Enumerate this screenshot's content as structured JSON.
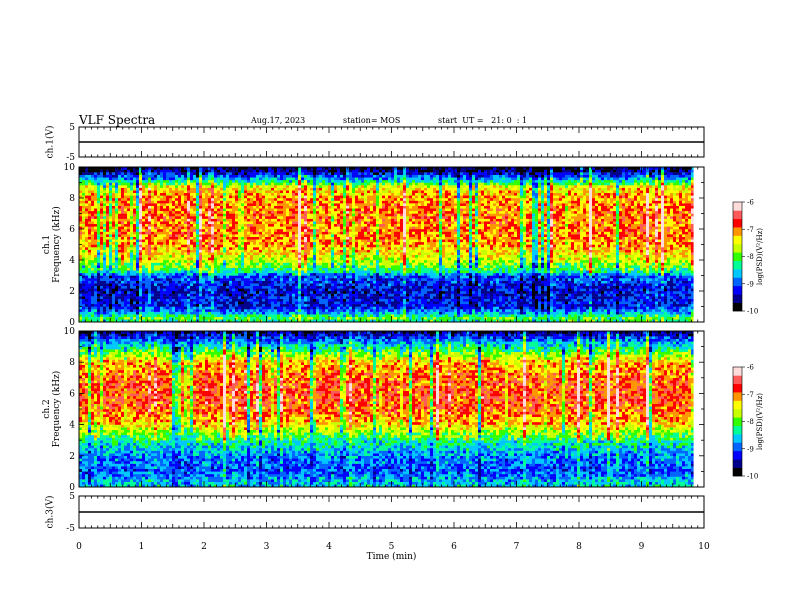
{
  "header": {
    "title": "VLF Spectra",
    "date": "Aug.17, 2023",
    "station": "station= MOS",
    "start": "start  UT =   21: 0  : 1"
  },
  "colors": {
    "scale": [
      "#000000",
      "#00008c",
      "#0000ff",
      "#0064ff",
      "#00c8ff",
      "#00ff96",
      "#32ff00",
      "#c8ff00",
      "#ffff00",
      "#ff9600",
      "#ff0000",
      "#ff5a5a",
      "#ffdcdc"
    ],
    "trace": "#000000"
  },
  "chart_data": [
    {
      "id": "ch1-voltage",
      "type": "line",
      "ylabel": "ch.1(V)",
      "ylim": [
        -5,
        5
      ],
      "yticks": [
        -5,
        5
      ],
      "x": [
        0,
        10
      ],
      "y": [
        0,
        0
      ],
      "xlim": [
        0,
        10
      ]
    },
    {
      "id": "ch1-spectrogram",
      "type": "heatmap",
      "ylabel": "ch.1\nFrequency (kHz)",
      "ylim": [
        0,
        10
      ],
      "yticks": [
        0,
        2,
        4,
        6,
        8,
        10
      ],
      "xlim": [
        0,
        10
      ],
      "x_data_end": 9.83,
      "colorbar": {
        "label": "log(PSD)(V²/Hz)",
        "range": [
          -10,
          -6
        ],
        "ticks": [
          -10,
          -9,
          -8,
          -7,
          -6
        ]
      },
      "profile_freq_khz": [
        0,
        0.3,
        0.6,
        1,
        2,
        3,
        3.2,
        4,
        5,
        6,
        7,
        8,
        8.7,
        9,
        9.3,
        9.7,
        10
      ],
      "profile_log_psd": [
        -8.3,
        -8.0,
        -8.7,
        -9.2,
        -9.3,
        -9.0,
        -8.4,
        -7.6,
        -7.1,
        -7.0,
        -7.0,
        -7.1,
        -7.4,
        -8.2,
        -8.8,
        -9.5,
        -9.8
      ]
    },
    {
      "id": "ch2-spectrogram",
      "type": "heatmap",
      "ylabel": "ch.2\nFrequency (kHz)",
      "ylim": [
        0,
        10
      ],
      "yticks": [
        0,
        2,
        4,
        6,
        8,
        10
      ],
      "xlim": [
        0,
        10
      ],
      "x_data_end": 9.83,
      "colorbar": {
        "label": "log(PSD)(V²/Hz)",
        "range": [
          -10,
          -6
        ],
        "ticks": [
          -10,
          -9,
          -8,
          -7,
          -6
        ]
      },
      "profile_freq_khz": [
        0,
        0.5,
        1,
        2,
        3,
        4,
        5,
        6,
        7,
        8,
        8.5,
        9,
        9.5,
        10
      ],
      "profile_log_psd": [
        -8.5,
        -8.7,
        -9.0,
        -8.8,
        -8.3,
        -7.3,
        -6.9,
        -6.8,
        -6.9,
        -7.2,
        -7.8,
        -8.4,
        -9.0,
        -9.6
      ]
    },
    {
      "id": "ch3-voltage",
      "type": "line",
      "ylabel": "ch.3(V)",
      "ylim": [
        -5,
        5
      ],
      "yticks": [
        -5,
        5
      ],
      "x": [
        0,
        10
      ],
      "y": [
        0,
        0
      ],
      "xlim": [
        0,
        10
      ]
    }
  ],
  "x_axis": {
    "label": "Time (min)",
    "ticks": [
      "0",
      "1",
      "2",
      "3",
      "4",
      "5",
      "6",
      "7",
      "8",
      "9",
      "10"
    ]
  }
}
